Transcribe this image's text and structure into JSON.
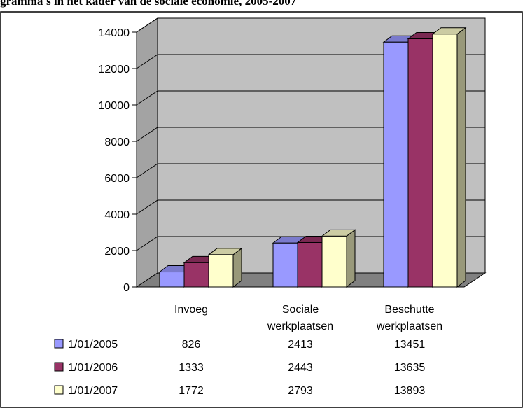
{
  "figure": {
    "caption": "gramma's in het kader van de sociale economie, 2005-2007"
  },
  "chart_data": {
    "type": "bar",
    "categories": [
      "Invoeg",
      "Sociale werkplaatsen",
      "Beschutte werkplaatsen"
    ],
    "category_lines": [
      [
        "Invoeg"
      ],
      [
        "Sociale",
        "werkplaatsen"
      ],
      [
        "Beschutte",
        "werkplaatsen"
      ]
    ],
    "series": [
      {
        "name": "1/01/2005",
        "values": [
          826,
          2413,
          13451
        ],
        "color": "#9999ff"
      },
      {
        "name": "1/01/2006",
        "values": [
          1333,
          2443,
          13635
        ],
        "color": "#993366"
      },
      {
        "name": "1/01/2007",
        "values": [
          1772,
          2793,
          13893
        ],
        "color": "#ffffcc"
      }
    ],
    "ylim": [
      0,
      14000
    ],
    "yticks": [
      0,
      2000,
      4000,
      6000,
      8000,
      10000,
      12000,
      14000
    ],
    "grid": true,
    "legend": "data-table-left",
    "wall_color": "#c0c0c0",
    "floor_color": "#808080"
  }
}
